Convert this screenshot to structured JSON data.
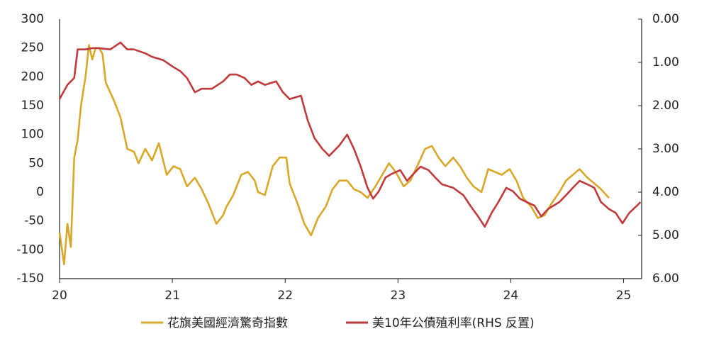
{
  "chart_data": {
    "type": "line",
    "xlim": [
      20,
      25.16
    ],
    "xticks": [
      20,
      21,
      22,
      23,
      24,
      25
    ],
    "ylim": [
      -150,
      300
    ],
    "yticks": [
      -150,
      -100,
      -50,
      0,
      50,
      100,
      150,
      200,
      250,
      300
    ],
    "y2lim": [
      6,
      0
    ],
    "y2ticks": [
      {
        "value": 0,
        "label": "0.00"
      },
      {
        "value": 1,
        "label": "1.00"
      },
      {
        "value": 2,
        "label": "2.00"
      },
      {
        "value": 3,
        "label": "3.00"
      },
      {
        "value": 4,
        "label": "4.00"
      },
      {
        "value": 5,
        "label": "5.00"
      },
      {
        "value": 6,
        "label": "6.00"
      }
    ],
    "grid": false,
    "legend": "bottom",
    "series": [
      {
        "name": "花旗美國經濟驚奇指數",
        "color": "#d9a82a",
        "x": [
          20.0,
          20.04,
          20.07,
          20.1,
          20.13,
          20.16,
          20.19,
          20.23,
          20.26,
          20.29,
          20.32,
          20.35,
          20.38,
          20.41,
          20.48,
          20.54,
          20.6,
          20.66,
          20.7,
          20.76,
          20.82,
          20.88,
          20.95,
          21.01,
          21.07,
          21.13,
          21.2,
          21.26,
          21.32,
          21.39,
          21.45,
          21.48,
          21.54,
          21.61,
          21.67,
          21.73,
          21.76,
          21.82,
          21.89,
          21.95,
          22.01,
          22.04,
          22.11,
          22.17,
          22.23,
          22.29,
          22.36,
          22.42,
          22.48,
          22.55,
          22.61,
          22.67,
          22.73,
          22.8,
          22.86,
          22.92,
          22.98,
          23.05,
          23.11,
          23.17,
          23.24,
          23.3,
          23.36,
          23.42,
          23.49,
          23.55,
          23.61,
          23.67,
          23.74,
          23.8,
          23.86,
          23.92,
          23.99,
          24.05,
          24.11,
          24.18,
          24.24,
          24.3,
          24.36,
          24.43,
          24.49,
          24.55,
          24.61,
          24.68,
          24.74,
          24.8,
          24.87
        ],
        "values": [
          -70,
          -125,
          -55,
          -95,
          60,
          90,
          150,
          200,
          255,
          230,
          250,
          250,
          240,
          190,
          160,
          130,
          75,
          70,
          50,
          75,
          55,
          85,
          30,
          45,
          40,
          10,
          25,
          5,
          -20,
          -55,
          -40,
          -25,
          -5,
          30,
          35,
          20,
          0,
          -5,
          45,
          60,
          60,
          15,
          -20,
          -55,
          -75,
          -45,
          -25,
          5,
          20,
          20,
          5,
          0,
          -10,
          10,
          30,
          50,
          35,
          10,
          20,
          45,
          75,
          80,
          60,
          45,
          60,
          45,
          25,
          10,
          0,
          40,
          35,
          30,
          40,
          20,
          -10,
          -25,
          -45,
          -40,
          -20,
          0,
          20,
          30,
          40,
          25,
          15,
          5,
          -10
        ]
      },
      {
        "name": "美10年公債殖利率(RHS 反置)",
        "color": "#c0393b",
        "axis": "y2",
        "x": [
          20.0,
          20.07,
          20.13,
          20.16,
          20.23,
          20.29,
          20.35,
          20.45,
          20.54,
          20.6,
          20.66,
          20.76,
          20.82,
          20.92,
          21.01,
          21.07,
          21.13,
          21.2,
          21.26,
          21.35,
          21.45,
          21.51,
          21.57,
          21.64,
          21.7,
          21.76,
          21.82,
          21.92,
          21.98,
          22.04,
          22.14,
          22.2,
          22.26,
          22.33,
          22.39,
          22.48,
          22.55,
          22.61,
          22.67,
          22.73,
          22.78,
          22.83,
          22.89,
          22.95,
          23.02,
          23.08,
          23.14,
          23.2,
          23.27,
          23.33,
          23.39,
          23.49,
          23.58,
          23.64,
          23.71,
          23.77,
          23.83,
          23.89,
          23.96,
          24.02,
          24.08,
          24.14,
          24.21,
          24.27,
          24.33,
          24.43,
          24.49,
          24.55,
          24.61,
          24.68,
          24.74,
          24.8,
          24.87,
          24.93,
          24.99,
          25.05,
          25.12,
          25.15
        ],
        "values": [
          1.85,
          1.52,
          1.36,
          0.7,
          0.7,
          0.67,
          0.67,
          0.7,
          0.54,
          0.7,
          0.7,
          0.79,
          0.87,
          0.95,
          1.11,
          1.2,
          1.36,
          1.69,
          1.61,
          1.61,
          1.44,
          1.28,
          1.28,
          1.36,
          1.52,
          1.44,
          1.52,
          1.44,
          1.69,
          1.85,
          1.77,
          2.34,
          2.75,
          3.0,
          3.16,
          2.92,
          2.67,
          3.0,
          3.41,
          3.9,
          4.15,
          3.98,
          3.66,
          3.57,
          3.49,
          3.74,
          3.57,
          3.41,
          3.49,
          3.66,
          3.82,
          3.9,
          4.07,
          4.31,
          4.56,
          4.8,
          4.48,
          4.23,
          3.9,
          3.98,
          4.15,
          4.23,
          4.31,
          4.56,
          4.39,
          4.23,
          4.07,
          3.9,
          3.74,
          3.82,
          3.9,
          4.23,
          4.39,
          4.48,
          4.72,
          4.48,
          4.31,
          4.23
        ]
      }
    ]
  }
}
